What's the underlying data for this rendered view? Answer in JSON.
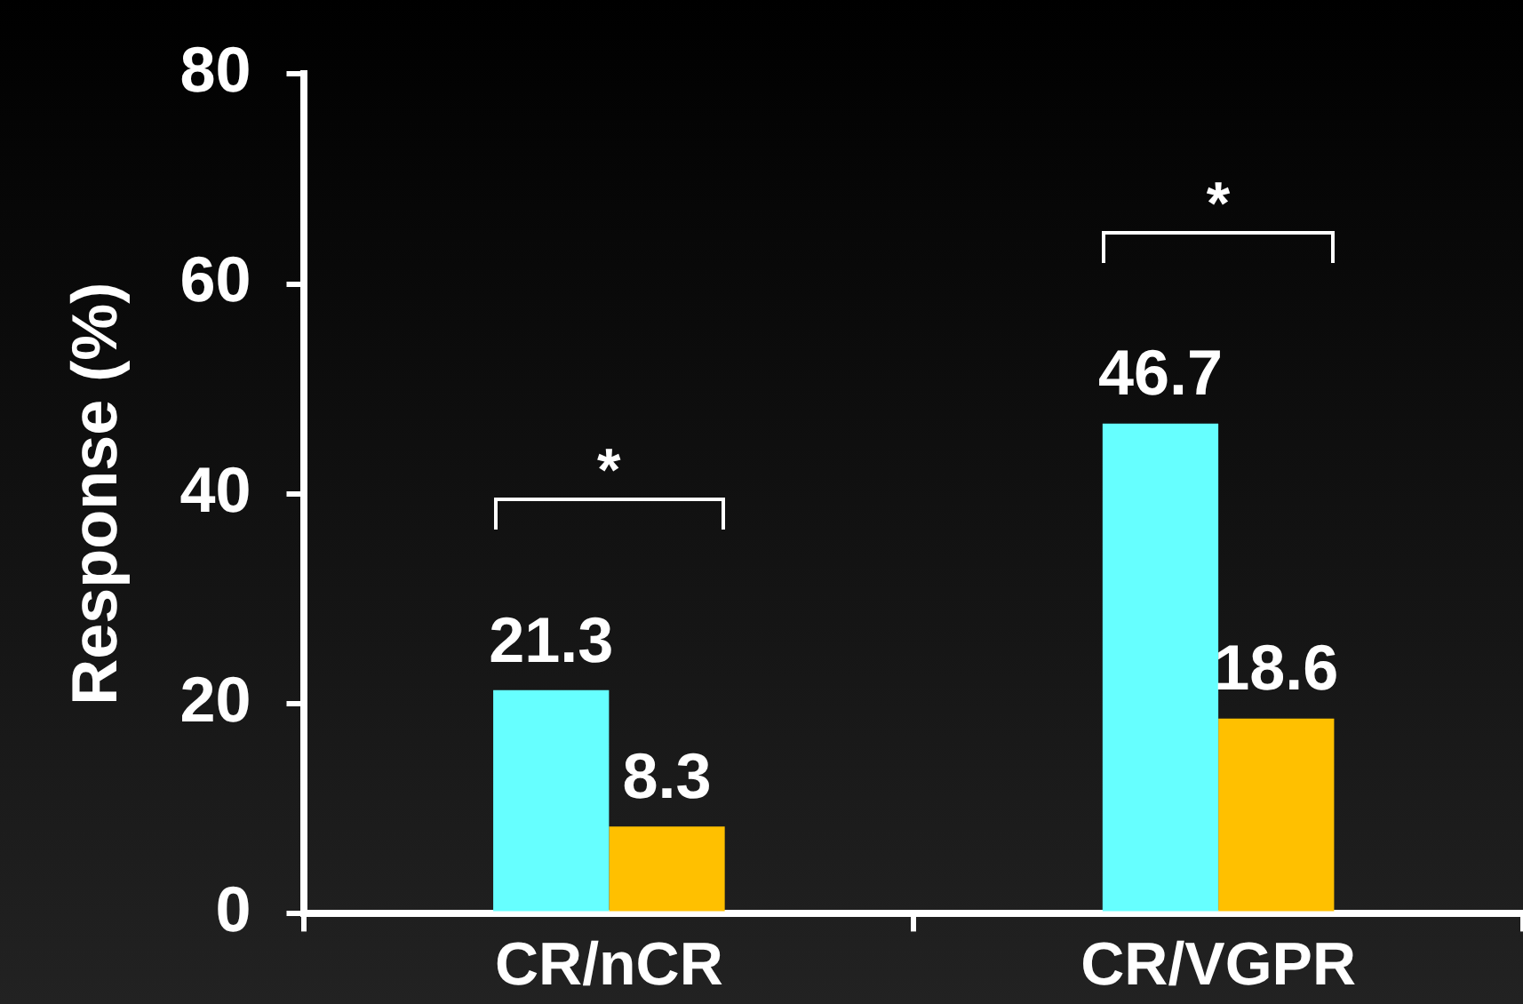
{
  "chart_data": {
    "type": "bar",
    "ylabel": "Response (%)",
    "categories": [
      "CR/nCR",
      "CR/VGPR"
    ],
    "series": [
      {
        "color": "#66ffff",
        "values": [
          21.3,
          46.7
        ]
      },
      {
        "color": "#ffc000",
        "values": [
          8.3,
          18.6
        ]
      }
    ],
    "ylim": [
      0,
      80
    ],
    "yticks": [
      0,
      20,
      40,
      60,
      80
    ],
    "grid": false,
    "legend": false,
    "data_labels": true,
    "annotations": [
      "*",
      "*"
    ]
  }
}
